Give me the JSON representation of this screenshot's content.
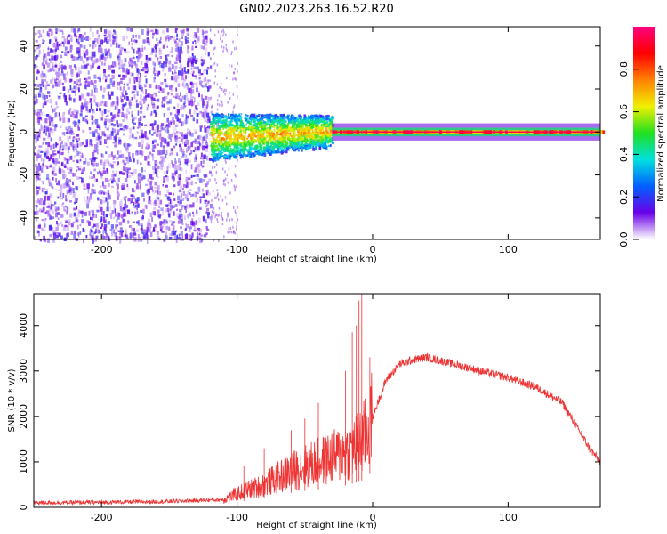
{
  "title": "GN02.2023.263.16.52.R20",
  "chart_data": [
    {
      "type": "heatmap",
      "xlabel": "Height of straight line (km)",
      "ylabel": "Frequency (Hz)",
      "xlim": [
        -250,
        168
      ],
      "ylim": [
        -50,
        49
      ],
      "x_ticks": [
        -200,
        -100,
        0,
        100
      ],
      "y_ticks": [
        -40,
        -20,
        0,
        20,
        40
      ],
      "colorbar": {
        "label": "Normalized spectral amplitude",
        "range": [
          0,
          1
        ],
        "ticks": [
          0.0,
          0.2,
          0.4,
          0.6,
          0.8
        ],
        "colormap": [
          "#ffffff",
          "#6a00e8",
          "#0060ff",
          "#00e0e0",
          "#20e020",
          "#f0f000",
          "#ff8000",
          "#ff0000",
          "#ff0080"
        ]
      },
      "regions": [
        {
          "x_range": [
            -250,
            -120
          ],
          "freq_range": [
            -50,
            49
          ],
          "amplitude": 0.15,
          "texture": "scattered"
        },
        {
          "x_range": [
            -120,
            -30
          ],
          "freq_range": [
            -12,
            10
          ],
          "amplitude": 0.35,
          "texture": "dense"
        },
        {
          "x_range": [
            -30,
            168
          ],
          "freq_range": [
            -1,
            1
          ],
          "amplitude": 0.95,
          "texture": "line"
        }
      ]
    },
    {
      "type": "line",
      "xlabel": "Height of straight line (km)",
      "ylabel": "SNR (10 * v/v)",
      "xlim": [
        -250,
        168
      ],
      "ylim": [
        0,
        4700
      ],
      "x_ticks": [
        -200,
        -100,
        0,
        100
      ],
      "y_ticks": [
        0,
        1000,
        2000,
        3000,
        4000
      ],
      "color": "#ee3333",
      "envelope": {
        "x": [
          -250,
          -200,
          -150,
          -110,
          -100,
          -80,
          -60,
          -40,
          -20,
          -10,
          -5,
          0,
          10,
          20,
          30,
          40,
          60,
          80,
          100,
          120,
          140,
          150,
          160,
          168
        ],
        "y": [
          100,
          110,
          130,
          170,
          300,
          500,
          800,
          1000,
          1200,
          1400,
          1600,
          2000,
          2800,
          3150,
          3250,
          3300,
          3150,
          3000,
          2850,
          2650,
          2300,
          1800,
          1300,
          1000
        ]
      },
      "spikes": [
        {
          "x": -95,
          "y": 900
        },
        {
          "x": -80,
          "y": 1300
        },
        {
          "x": -60,
          "y": 1700
        },
        {
          "x": -50,
          "y": 1950
        },
        {
          "x": -40,
          "y": 2300
        },
        {
          "x": -35,
          "y": 2700
        },
        {
          "x": -20,
          "y": 3000
        },
        {
          "x": -15,
          "y": 3850
        },
        {
          "x": -12,
          "y": 4000
        },
        {
          "x": -10,
          "y": 4550
        },
        {
          "x": -8,
          "y": 4700
        },
        {
          "x": -5,
          "y": 3400
        },
        {
          "x": -2,
          "y": 3300
        }
      ]
    }
  ]
}
